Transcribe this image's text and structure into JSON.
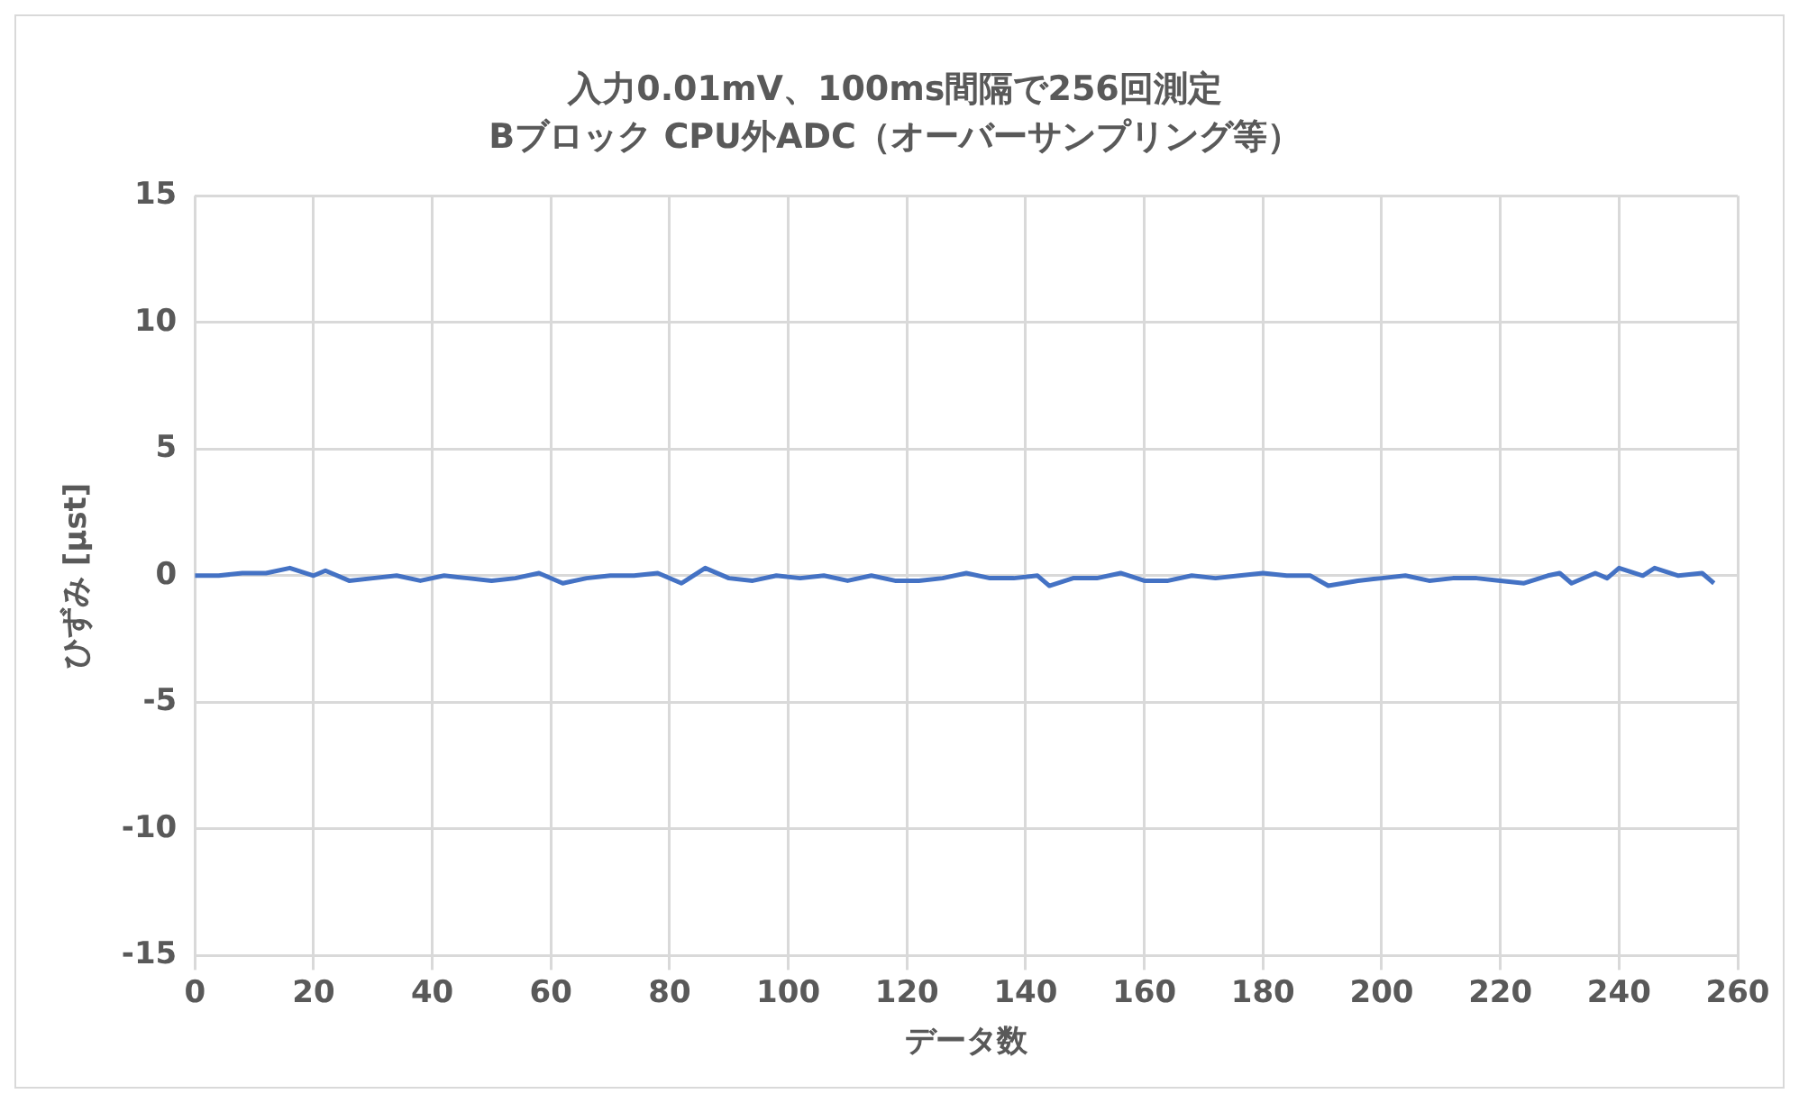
{
  "chart_data": {
    "type": "line",
    "title": "入力0.01mV、100ms間隔で256回測定",
    "subtitle": "Bブロック CPU外ADC（オーバーサンプリング等）",
    "xlabel": "データ数",
    "ylabel": "ひずみ [μst]",
    "x": [
      0,
      4,
      8,
      12,
      16,
      20,
      22,
      26,
      30,
      34,
      38,
      42,
      46,
      50,
      54,
      58,
      62,
      66,
      70,
      74,
      78,
      82,
      86,
      90,
      94,
      98,
      102,
      106,
      110,
      114,
      118,
      122,
      126,
      130,
      134,
      138,
      142,
      144,
      148,
      152,
      156,
      160,
      164,
      168,
      172,
      176,
      180,
      184,
      188,
      191,
      196,
      200,
      204,
      208,
      212,
      216,
      220,
      224,
      228,
      230,
      232,
      236,
      238,
      240,
      244,
      246,
      250,
      254,
      256
    ],
    "series": [
      {
        "color": "#4472c4",
        "values": [
          0.0,
          0.0,
          0.1,
          0.1,
          0.3,
          0.0,
          0.2,
          -0.2,
          -0.1,
          0.0,
          -0.2,
          0.0,
          -0.1,
          -0.2,
          -0.1,
          0.1,
          -0.3,
          -0.1,
          0.0,
          0.0,
          0.1,
          -0.3,
          0.3,
          -0.1,
          -0.2,
          0.0,
          -0.1,
          0.0,
          -0.2,
          0.0,
          -0.2,
          -0.2,
          -0.1,
          0.1,
          -0.1,
          -0.1,
          0.0,
          -0.4,
          -0.1,
          -0.1,
          0.1,
          -0.2,
          -0.2,
          0.0,
          -0.1,
          0.0,
          0.1,
          0.0,
          0.0,
          -0.4,
          -0.2,
          -0.1,
          0.0,
          -0.2,
          -0.1,
          -0.1,
          -0.2,
          -0.3,
          0.0,
          0.1,
          -0.3,
          0.1,
          -0.1,
          0.3,
          0.0,
          0.3,
          0.0,
          0.1,
          -0.3
        ]
      }
    ],
    "xlim": [
      0,
      260
    ],
    "xticks": [
      0,
      20,
      40,
      60,
      80,
      100,
      120,
      140,
      160,
      180,
      200,
      220,
      240,
      260
    ],
    "ylim": [
      -15,
      15
    ],
    "yticks": [
      -15,
      -10,
      -5,
      0,
      5,
      10,
      15
    ],
    "grid": true,
    "legend": false,
    "marker": "none",
    "line_style": "solid"
  }
}
